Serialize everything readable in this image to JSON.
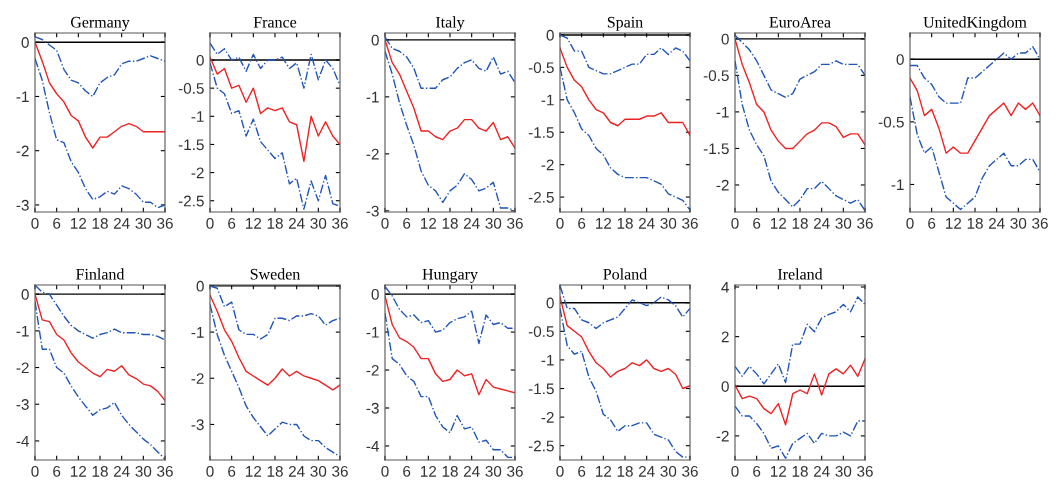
{
  "chart_data": [
    {
      "type": "line",
      "title": "Germany",
      "x": [
        0,
        2,
        4,
        6,
        8,
        10,
        12,
        14,
        16,
        18,
        20,
        22,
        24,
        26,
        28,
        30,
        32,
        34,
        36
      ],
      "xlim": [
        0,
        36
      ],
      "xticks": [
        0,
        6,
        12,
        18,
        24,
        30,
        36
      ],
      "ylim": [
        -3.13,
        0.17
      ],
      "yticks": [
        -3,
        -2,
        -1,
        0
      ],
      "grid": false,
      "ref_lines": [
        {
          "axis": "y",
          "value": 0,
          "color": "#000000"
        }
      ],
      "series": [
        {
          "color": "#1f55b8",
          "line_style": "dashdot",
          "values": [
            0.1,
            0.05,
            -0.05,
            -0.15,
            -0.5,
            -0.7,
            -0.75,
            -0.9,
            -1.0,
            -0.75,
            -0.65,
            -0.6,
            -0.4,
            -0.35,
            -0.35,
            -0.3,
            -0.25,
            -0.3,
            -0.35
          ]
        },
        {
          "color": "#1f55b8",
          "line_style": "dashdot",
          "values": [
            -0.3,
            -0.7,
            -1.3,
            -1.8,
            -1.85,
            -2.2,
            -2.4,
            -2.7,
            -2.9,
            -2.85,
            -2.75,
            -2.8,
            -2.65,
            -2.7,
            -2.8,
            -2.95,
            -2.95,
            -3.05,
            -3.0
          ]
        },
        {
          "color": "#ee2222",
          "line_style": "solid",
          "values": [
            0,
            -0.35,
            -0.75,
            -0.95,
            -1.1,
            -1.35,
            -1.45,
            -1.75,
            -1.95,
            -1.75,
            -1.75,
            -1.65,
            -1.55,
            -1.5,
            -1.55,
            -1.65,
            -1.65,
            -1.65,
            -1.65
          ]
        }
      ]
    },
    {
      "type": "line",
      "title": "France",
      "x": [
        0,
        2,
        4,
        6,
        8,
        10,
        12,
        14,
        16,
        18,
        20,
        22,
        24,
        26,
        28,
        30,
        32,
        34,
        36
      ],
      "xlim": [
        0,
        36
      ],
      "xticks": [
        0,
        6,
        12,
        18,
        24,
        30,
        36
      ],
      "ylim": [
        -2.7,
        0.48
      ],
      "yticks": [
        -2.5,
        -2,
        -1.5,
        -1,
        -0.5,
        0
      ],
      "grid": false,
      "ref_lines": [
        {
          "axis": "y",
          "value": 0,
          "color": "#000000"
        }
      ],
      "series": [
        {
          "color": "#1f55b8",
          "line_style": "dashdot",
          "values": [
            0.3,
            0.1,
            0.2,
            0.0,
            0.05,
            -0.2,
            0.1,
            -0.15,
            0.0,
            0.0,
            0.05,
            -0.15,
            -0.05,
            -0.5,
            0.1,
            -0.35,
            0.0,
            -0.15,
            -0.45
          ]
        },
        {
          "color": "#1f55b8",
          "line_style": "dashdot",
          "values": [
            -0.05,
            -0.5,
            -0.6,
            -0.95,
            -0.9,
            -1.35,
            -1.05,
            -1.45,
            -1.6,
            -1.75,
            -1.65,
            -2.2,
            -2.1,
            -2.65,
            -2.15,
            -2.5,
            -2.05,
            -2.55,
            -2.6
          ]
        },
        {
          "color": "#ee2222",
          "line_style": "solid",
          "values": [
            0.05,
            -0.25,
            -0.15,
            -0.5,
            -0.45,
            -0.75,
            -0.5,
            -0.95,
            -0.85,
            -0.9,
            -0.85,
            -1.1,
            -1.15,
            -1.8,
            -1.0,
            -1.35,
            -1.1,
            -1.35,
            -1.5
          ]
        }
      ]
    },
    {
      "type": "line",
      "title": "Italy",
      "x": [
        0,
        2,
        4,
        6,
        8,
        10,
        12,
        14,
        16,
        18,
        20,
        22,
        24,
        26,
        28,
        30,
        32,
        34,
        36
      ],
      "xlim": [
        0,
        36
      ],
      "xticks": [
        0,
        6,
        12,
        18,
        24,
        30,
        36
      ],
      "ylim": [
        -3.02,
        0.12
      ],
      "yticks": [
        -3,
        -2,
        -1,
        0
      ],
      "grid": false,
      "ref_lines": [
        {
          "axis": "y",
          "value": 0,
          "color": "#000000"
        }
      ],
      "series": [
        {
          "color": "#1f55b8",
          "line_style": "dashdot",
          "values": [
            0.05,
            -0.15,
            -0.2,
            -0.3,
            -0.5,
            -0.85,
            -0.85,
            -0.85,
            -0.7,
            -0.65,
            -0.5,
            -0.4,
            -0.35,
            -0.5,
            -0.55,
            -0.3,
            -0.6,
            -0.55,
            -0.75
          ]
        },
        {
          "color": "#1f55b8",
          "line_style": "dashdot",
          "values": [
            -0.2,
            -0.6,
            -1.1,
            -1.5,
            -1.85,
            -2.3,
            -2.55,
            -2.65,
            -2.85,
            -2.65,
            -2.55,
            -2.35,
            -2.45,
            -2.65,
            -2.6,
            -2.5,
            -2.95,
            -2.95,
            -3.0
          ]
        },
        {
          "color": "#ee2222",
          "line_style": "solid",
          "values": [
            0,
            -0.4,
            -0.6,
            -0.9,
            -1.2,
            -1.6,
            -1.6,
            -1.7,
            -1.75,
            -1.6,
            -1.55,
            -1.4,
            -1.4,
            -1.55,
            -1.6,
            -1.45,
            -1.75,
            -1.7,
            -1.9
          ]
        }
      ]
    },
    {
      "type": "line",
      "title": "Spain",
      "x": [
        0,
        2,
        4,
        6,
        8,
        10,
        12,
        14,
        16,
        18,
        20,
        22,
        24,
        26,
        28,
        30,
        32,
        34,
        36
      ],
      "xlim": [
        0,
        36
      ],
      "xticks": [
        0,
        6,
        12,
        18,
        24,
        30,
        36
      ],
      "ylim": [
        -2.73,
        0.03
      ],
      "yticks": [
        -2.5,
        -2,
        -1.5,
        -1,
        -0.5,
        0
      ],
      "grid": false,
      "ref_lines": [
        {
          "axis": "y",
          "value": 0,
          "color": "#000000"
        }
      ],
      "series": [
        {
          "color": "#1f55b8",
          "line_style": "dashdot",
          "values": [
            0.0,
            -0.05,
            -0.25,
            -0.25,
            -0.5,
            -0.55,
            -0.6,
            -0.6,
            -0.55,
            -0.5,
            -0.45,
            -0.45,
            -0.3,
            -0.3,
            -0.2,
            -0.3,
            -0.2,
            -0.25,
            -0.4
          ]
        },
        {
          "color": "#1f55b8",
          "line_style": "dashdot",
          "values": [
            -0.5,
            -1.0,
            -1.2,
            -1.45,
            -1.55,
            -1.75,
            -1.85,
            -2.05,
            -2.15,
            -2.2,
            -2.2,
            -2.2,
            -2.2,
            -2.25,
            -2.3,
            -2.45,
            -2.5,
            -2.55,
            -2.7
          ]
        },
        {
          "color": "#ee2222",
          "line_style": "solid",
          "values": [
            -0.2,
            -0.5,
            -0.7,
            -0.8,
            -1.0,
            -1.15,
            -1.2,
            -1.35,
            -1.4,
            -1.3,
            -1.3,
            -1.3,
            -1.25,
            -1.25,
            -1.2,
            -1.35,
            -1.35,
            -1.35,
            -1.55
          ]
        }
      ]
    },
    {
      "type": "line",
      "title": "EuroArea",
      "x": [
        0,
        2,
        4,
        6,
        8,
        10,
        12,
        14,
        16,
        18,
        20,
        22,
        24,
        26,
        28,
        30,
        32,
        34,
        36
      ],
      "xlim": [
        0,
        36
      ],
      "xticks": [
        0,
        6,
        12,
        18,
        24,
        30,
        36
      ],
      "ylim": [
        -2.37,
        0.08
      ],
      "yticks": [
        -2,
        -1.5,
        -1,
        -0.5,
        0
      ],
      "grid": false,
      "ref_lines": [
        {
          "axis": "y",
          "value": 0,
          "color": "#000000"
        }
      ],
      "series": [
        {
          "color": "#1f55b8",
          "line_style": "dashdot",
          "values": [
            0.05,
            -0.05,
            -0.15,
            -0.3,
            -0.5,
            -0.7,
            -0.75,
            -0.8,
            -0.75,
            -0.55,
            -0.5,
            -0.45,
            -0.35,
            -0.35,
            -0.3,
            -0.35,
            -0.35,
            -0.35,
            -0.5
          ]
        },
        {
          "color": "#1f55b8",
          "line_style": "dashdot",
          "values": [
            -0.3,
            -0.9,
            -1.25,
            -1.45,
            -1.6,
            -1.95,
            -2.1,
            -2.2,
            -2.3,
            -2.2,
            -2.05,
            -2.05,
            -1.95,
            -2.05,
            -2.15,
            -2.2,
            -2.25,
            -2.2,
            -2.35
          ]
        },
        {
          "color": "#ee2222",
          "line_style": "solid",
          "values": [
            0,
            -0.35,
            -0.6,
            -0.9,
            -1.0,
            -1.25,
            -1.4,
            -1.5,
            -1.5,
            -1.4,
            -1.3,
            -1.25,
            -1.15,
            -1.15,
            -1.2,
            -1.35,
            -1.3,
            -1.3,
            -1.45
          ]
        }
      ]
    },
    {
      "type": "line",
      "title": "UnitedKingdom",
      "x": [
        0,
        2,
        4,
        6,
        8,
        10,
        12,
        14,
        16,
        18,
        20,
        22,
        24,
        26,
        28,
        30,
        32,
        34,
        36
      ],
      "xlim": [
        0,
        36
      ],
      "xticks": [
        0,
        6,
        12,
        18,
        24,
        30,
        36
      ],
      "ylim": [
        -1.22,
        0.21
      ],
      "yticks": [
        -1,
        -0.5,
        0
      ],
      "grid": false,
      "ref_lines": [
        {
          "axis": "y",
          "value": 0,
          "color": "#000000"
        }
      ],
      "series": [
        {
          "color": "#1f55b8",
          "line_style": "dashdot",
          "values": [
            -0.05,
            -0.05,
            -0.15,
            -0.2,
            -0.3,
            -0.35,
            -0.35,
            -0.35,
            -0.15,
            -0.15,
            -0.1,
            -0.05,
            0.0,
            0.05,
            0.0,
            0.05,
            0.05,
            0.1,
            0.0
          ]
        },
        {
          "color": "#1f55b8",
          "line_style": "dashdot",
          "values": [
            -0.3,
            -0.6,
            -0.75,
            -0.7,
            -0.9,
            -1.1,
            -1.15,
            -1.2,
            -1.15,
            -1.1,
            -0.95,
            -0.85,
            -0.8,
            -0.75,
            -0.85,
            -0.85,
            -0.8,
            -0.8,
            -0.9
          ]
        },
        {
          "color": "#ee2222",
          "line_style": "solid",
          "values": [
            -0.15,
            -0.25,
            -0.45,
            -0.4,
            -0.55,
            -0.75,
            -0.7,
            -0.75,
            -0.75,
            -0.65,
            -0.55,
            -0.45,
            -0.4,
            -0.35,
            -0.45,
            -0.35,
            -0.4,
            -0.35,
            -0.45
          ]
        }
      ]
    },
    {
      "type": "line",
      "title": "Finland",
      "x": [
        0,
        2,
        4,
        6,
        8,
        10,
        12,
        14,
        16,
        18,
        20,
        22,
        24,
        26,
        28,
        30,
        32,
        34,
        36
      ],
      "xlim": [
        0,
        36
      ],
      "xticks": [
        0,
        6,
        12,
        18,
        24,
        30,
        36
      ],
      "ylim": [
        -4.52,
        0.25
      ],
      "yticks": [
        -4,
        -3,
        -2,
        -1,
        0
      ],
      "grid": false,
      "ref_lines": [
        {
          "axis": "y",
          "value": 0,
          "color": "#000000"
        }
      ],
      "series": [
        {
          "color": "#1f55b8",
          "line_style": "dashdot",
          "values": [
            0.25,
            0.05,
            0.0,
            -0.3,
            -0.6,
            -0.85,
            -1.0,
            -1.1,
            -1.2,
            -1.1,
            -1.05,
            -0.95,
            -1.05,
            -1.05,
            -1.05,
            -1.1,
            -1.1,
            -1.15,
            -1.25
          ]
        },
        {
          "color": "#1f55b8",
          "line_style": "dashdot",
          "values": [
            -0.2,
            -1.5,
            -1.5,
            -2.0,
            -2.15,
            -2.5,
            -2.8,
            -3.05,
            -3.3,
            -3.15,
            -3.1,
            -2.95,
            -3.3,
            -3.55,
            -3.75,
            -3.95,
            -4.1,
            -4.3,
            -4.5
          ]
        },
        {
          "color": "#ee2222",
          "line_style": "solid",
          "values": [
            0,
            -0.7,
            -0.75,
            -1.1,
            -1.25,
            -1.6,
            -1.85,
            -2.0,
            -2.15,
            -2.25,
            -2.05,
            -2.1,
            -1.95,
            -2.2,
            -2.3,
            -2.45,
            -2.5,
            -2.65,
            -2.9
          ]
        }
      ]
    },
    {
      "type": "line",
      "title": "Sweden",
      "x": [
        0,
        2,
        4,
        6,
        8,
        10,
        12,
        14,
        16,
        18,
        20,
        22,
        24,
        26,
        28,
        30,
        32,
        34,
        36
      ],
      "xlim": [
        0,
        36
      ],
      "xticks": [
        0,
        6,
        12,
        18,
        24,
        30,
        36
      ],
      "ylim": [
        -3.77,
        0.02
      ],
      "yticks": [
        -3,
        -2,
        -1,
        0
      ],
      "grid": false,
      "ref_lines": [
        {
          "axis": "y",
          "value": 0,
          "color": "#000000"
        }
      ],
      "series": [
        {
          "color": "#1f55b8",
          "line_style": "dashdot",
          "values": [
            0.0,
            -0.05,
            -0.45,
            -0.35,
            -0.95,
            -1.05,
            -1.05,
            -1.15,
            -1.05,
            -0.7,
            -0.7,
            -0.75,
            -0.65,
            -0.65,
            -0.6,
            -0.65,
            -0.85,
            -0.75,
            -0.7
          ]
        },
        {
          "color": "#1f55b8",
          "line_style": "dashdot",
          "values": [
            -0.4,
            -1.05,
            -1.5,
            -1.85,
            -2.2,
            -2.6,
            -2.85,
            -3.05,
            -3.25,
            -3.1,
            -2.95,
            -3.0,
            -3.0,
            -3.25,
            -3.35,
            -3.35,
            -3.5,
            -3.6,
            -3.7
          ]
        },
        {
          "color": "#ee2222",
          "line_style": "solid",
          "values": [
            -0.2,
            -0.55,
            -0.95,
            -1.2,
            -1.55,
            -1.85,
            -1.95,
            -2.05,
            -2.15,
            -2.0,
            -1.8,
            -1.95,
            -1.85,
            -1.95,
            -2.0,
            -2.05,
            -2.15,
            -2.25,
            -2.15
          ]
        }
      ]
    },
    {
      "type": "line",
      "title": "Hungary",
      "x": [
        0,
        2,
        4,
        6,
        8,
        10,
        12,
        14,
        16,
        18,
        20,
        22,
        24,
        26,
        28,
        30,
        32,
        34,
        36
      ],
      "xlim": [
        0,
        36
      ],
      "xticks": [
        0,
        6,
        12,
        18,
        24,
        30,
        36
      ],
      "ylim": [
        -4.37,
        0.24
      ],
      "yticks": [
        -4,
        -3,
        -2,
        -1,
        0
      ],
      "grid": false,
      "ref_lines": [
        {
          "axis": "y",
          "value": 0,
          "color": "#000000"
        }
      ],
      "series": [
        {
          "color": "#1f55b8",
          "line_style": "dashdot",
          "values": [
            0.2,
            -0.05,
            -0.4,
            -0.6,
            -0.55,
            -0.75,
            -0.7,
            -1.0,
            -0.95,
            -0.75,
            -0.65,
            -0.6,
            -0.45,
            -1.3,
            -0.55,
            -0.8,
            -0.75,
            -0.9,
            -0.9
          ]
        },
        {
          "color": "#1f55b8",
          "line_style": "dashdot",
          "values": [
            -0.5,
            -1.7,
            -1.85,
            -2.15,
            -2.3,
            -2.7,
            -2.7,
            -3.2,
            -3.5,
            -3.65,
            -3.2,
            -3.55,
            -3.5,
            -3.9,
            -3.85,
            -4.1,
            -4.1,
            -4.3,
            -4.3
          ]
        },
        {
          "color": "#ee2222",
          "line_style": "solid",
          "values": [
            -0.05,
            -0.8,
            -1.15,
            -1.25,
            -1.4,
            -1.7,
            -1.7,
            -2.1,
            -2.3,
            -2.25,
            -2.0,
            -2.15,
            -2.1,
            -2.65,
            -2.25,
            -2.45,
            -2.5,
            -2.55,
            -2.6
          ]
        }
      ]
    },
    {
      "type": "line",
      "title": "Poland",
      "x": [
        0,
        2,
        4,
        6,
        8,
        10,
        12,
        14,
        16,
        18,
        20,
        22,
        24,
        26,
        28,
        30,
        32,
        34,
        36
      ],
      "xlim": [
        0,
        36
      ],
      "xticks": [
        0,
        6,
        12,
        18,
        24,
        30,
        36
      ],
      "ylim": [
        -2.75,
        0.31
      ],
      "yticks": [
        -2.5,
        -2,
        -1.5,
        -1,
        -0.5,
        0
      ],
      "grid": false,
      "ref_lines": [
        {
          "axis": "y",
          "value": 0,
          "color": "#000000"
        }
      ],
      "series": [
        {
          "color": "#1f55b8",
          "line_style": "dashdot",
          "values": [
            0.3,
            -0.1,
            -0.1,
            -0.3,
            -0.35,
            -0.45,
            -0.35,
            -0.3,
            -0.25,
            -0.1,
            0.05,
            0.0,
            -0.05,
            0.0,
            0.1,
            0.05,
            -0.05,
            -0.25,
            -0.1
          ]
        },
        {
          "color": "#1f55b8",
          "line_style": "dashdot",
          "values": [
            -0.1,
            -0.75,
            -0.9,
            -0.85,
            -1.3,
            -1.55,
            -1.95,
            -2.05,
            -2.25,
            -2.15,
            -2.15,
            -2.1,
            -2.1,
            -2.3,
            -2.35,
            -2.4,
            -2.6,
            -2.7,
            -2.7
          ]
        },
        {
          "color": "#ee2222",
          "line_style": "solid",
          "values": [
            0.1,
            -0.4,
            -0.5,
            -0.6,
            -0.85,
            -1.05,
            -1.15,
            -1.3,
            -1.2,
            -1.15,
            -1.05,
            -1.1,
            -1.0,
            -1.15,
            -1.2,
            -1.15,
            -1.25,
            -1.5,
            -1.45
          ]
        }
      ]
    },
    {
      "type": "line",
      "title": "Ireland",
      "x": [
        0,
        2,
        4,
        6,
        8,
        10,
        12,
        14,
        16,
        18,
        20,
        22,
        24,
        26,
        28,
        30,
        32,
        34,
        36
      ],
      "xlim": [
        0,
        36
      ],
      "xticks": [
        0,
        6,
        12,
        18,
        24,
        30,
        36
      ],
      "ylim": [
        -2.97,
        4.08
      ],
      "yticks": [
        -2,
        0,
        2,
        4
      ],
      "grid": false,
      "ref_lines": [
        {
          "axis": "y",
          "value": 0,
          "color": "#000000"
        }
      ],
      "series": [
        {
          "color": "#1f55b8",
          "line_style": "dashdot",
          "values": [
            0.8,
            0.4,
            0.8,
            0.5,
            0.1,
            0.5,
            0.9,
            0.15,
            1.7,
            1.7,
            2.5,
            2.2,
            2.75,
            2.9,
            3.0,
            3.3,
            3.0,
            3.6,
            3.3
          ]
        },
        {
          "color": "#1f55b8",
          "line_style": "dashdot",
          "values": [
            -0.8,
            -1.2,
            -1.2,
            -1.5,
            -1.9,
            -2.5,
            -2.4,
            -2.9,
            -2.3,
            -2.1,
            -1.9,
            -2.3,
            -1.9,
            -2.0,
            -2.0,
            -1.85,
            -2.0,
            -1.4,
            -1.4
          ]
        },
        {
          "color": "#ee2222",
          "line_style": "solid",
          "values": [
            0.05,
            -0.5,
            -0.4,
            -0.5,
            -0.9,
            -1.1,
            -0.7,
            -1.55,
            -0.3,
            -0.15,
            -0.3,
            0.5,
            -0.35,
            0.5,
            0.7,
            0.5,
            0.85,
            0.4,
            1.1
          ]
        }
      ]
    }
  ]
}
